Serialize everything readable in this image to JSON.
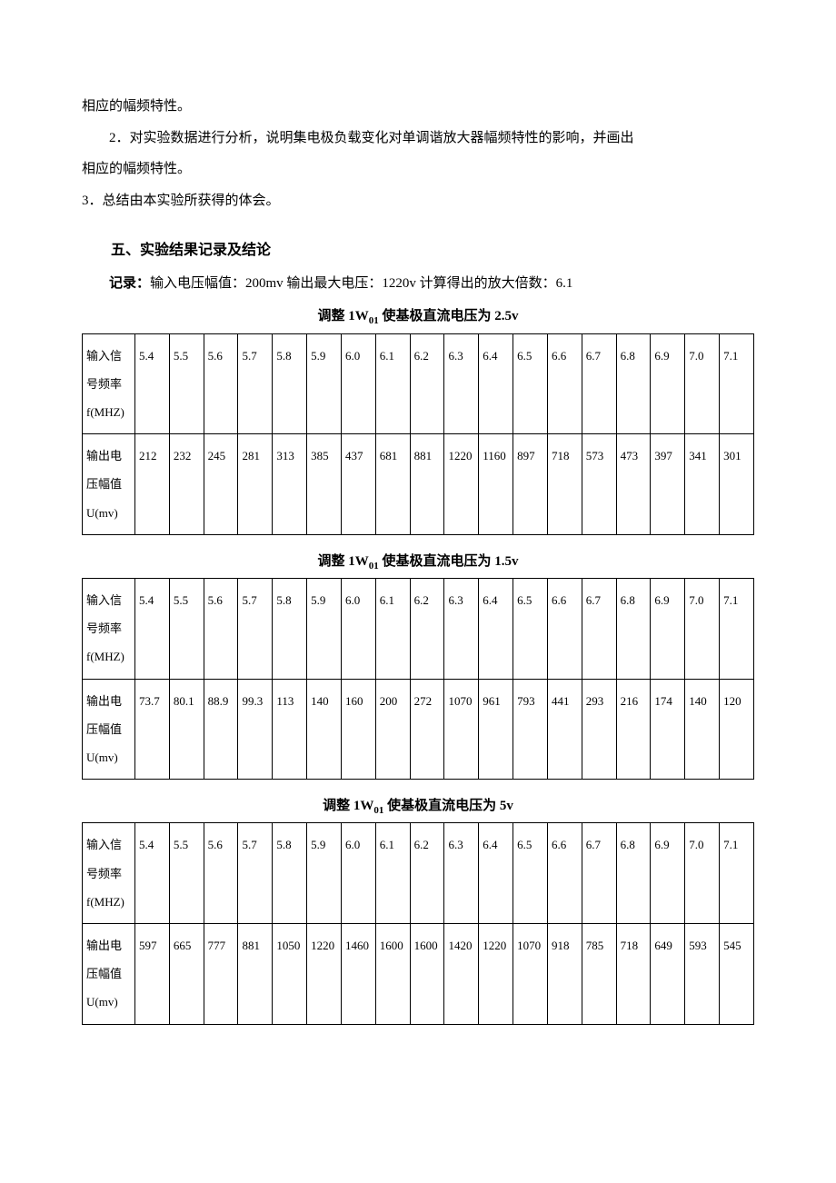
{
  "para1": "相应的幅频特性。",
  "para2": "2．对实验数据进行分析，说明集电极负载变化对单调谐放大器幅频特性的影响，并画出",
  "para3": "相应的幅频特性。",
  "para4": "3．总结由本实验所获得的体会。",
  "section5_heading": "五、实验结果记录及结论",
  "record_label": "记录：",
  "record_text": "输入电压幅值：200mv 输出最大电压：1220v 计算得出的放大倍数：6.1",
  "table1": {
    "caption_prefix": "调整 1W",
    "caption_sub": "01",
    "caption_suffix": " 使基极直流电压为 2.5v",
    "row1_label": "输入信号频率f(MHZ)",
    "row2_label": "输出电压幅值U(mv)",
    "freq": [
      "5.4",
      "5.5",
      "5.6",
      "5.7",
      "5.8",
      "5.9",
      "6.0",
      "6.1",
      "6.2",
      "6.3",
      "6.4",
      "6.5",
      "6.6",
      "6.7",
      "6.8",
      "6.9",
      "7.0",
      "7.1"
    ],
    "vals": [
      "212",
      "232",
      "245",
      "281",
      "313",
      "385",
      "437",
      "681",
      "881",
      "1220",
      "1160",
      "897",
      "718",
      "573",
      "473",
      "397",
      "341",
      "301"
    ]
  },
  "table2": {
    "caption_prefix": "调整 1W",
    "caption_sub": "01",
    "caption_suffix": " 使基极直流电压为 1.5v",
    "row1_label": "输入信号频率f(MHZ)",
    "row2_label": "输出电压幅值U(mv)",
    "freq": [
      "5.4",
      "5.5",
      "5.6",
      "5.7",
      "5.8",
      "5.9",
      "6.0",
      "6.1",
      "6.2",
      "6.3",
      "6.4",
      "6.5",
      "6.6",
      "6.7",
      "6.8",
      "6.9",
      "7.0",
      "7.1"
    ],
    "vals": [
      "73.7",
      "80.1",
      "88.9",
      "99.3",
      "113",
      "140",
      "160",
      "200",
      "272",
      "1070",
      "961",
      "793",
      "441",
      "293",
      "216",
      "174",
      "140",
      "120"
    ]
  },
  "table3": {
    "caption_prefix": "调整 1W",
    "caption_sub": "01",
    "caption_suffix": " 使基极直流电压为 5v",
    "row1_label": "输入信号频率f(MHZ)",
    "row2_label": "输出电压幅值U(mv)",
    "freq": [
      "5.4",
      "5.5",
      "5.6",
      "5.7",
      "5.8",
      "5.9",
      "6.0",
      "6.1",
      "6.2",
      "6.3",
      "6.4",
      "6.5",
      "6.6",
      "6.7",
      "6.8",
      "6.9",
      "7.0",
      "7.1"
    ],
    "vals": [
      "597",
      "665",
      "777",
      "881",
      "1050",
      "1220",
      "1460",
      "1600",
      "1600",
      "1420",
      "1220",
      "1070",
      "918",
      "785",
      "718",
      "649",
      "593",
      "545"
    ]
  }
}
